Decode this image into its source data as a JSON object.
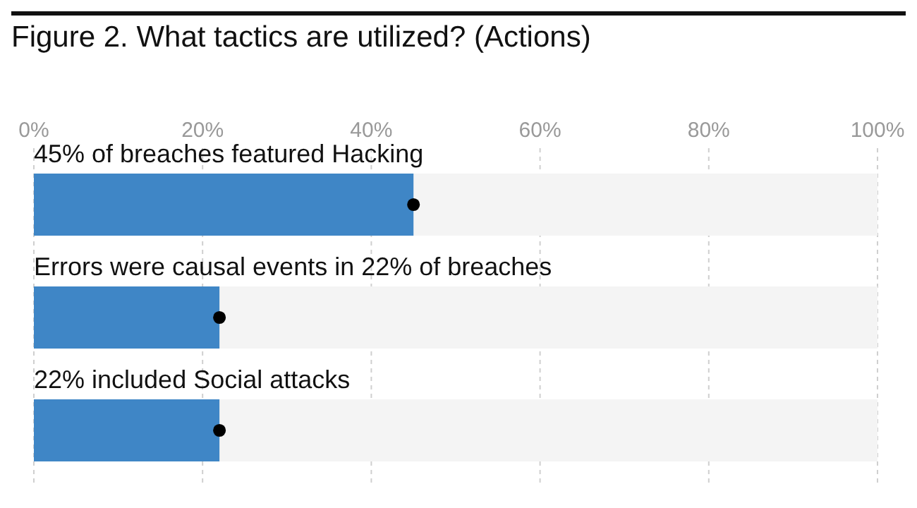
{
  "chart_data": {
    "type": "bar",
    "orientation": "horizontal",
    "title": "Figure 2. What tactics are utilized? (Actions)",
    "categories": [
      "45% of breaches featured Hacking",
      "Errors were causal events in 22% of breaches",
      "22% included Social attacks"
    ],
    "series": [
      {
        "color": "#3f86c6",
        "values": [
          45,
          22,
          22
        ]
      },
      {
        "type": "scatter",
        "color": "#000000",
        "marker": "circle",
        "values": [
          45,
          22,
          22
        ]
      }
    ],
    "xlim": [
      0,
      100
    ],
    "xticks": [
      {
        "value": 0,
        "label": "0%"
      },
      {
        "value": 20,
        "label": "20%"
      },
      {
        "value": 40,
        "label": "40%"
      },
      {
        "value": 60,
        "label": "60%"
      },
      {
        "value": 80,
        "label": "80%"
      },
      {
        "value": 100,
        "label": "100%"
      }
    ],
    "grid": "x"
  }
}
